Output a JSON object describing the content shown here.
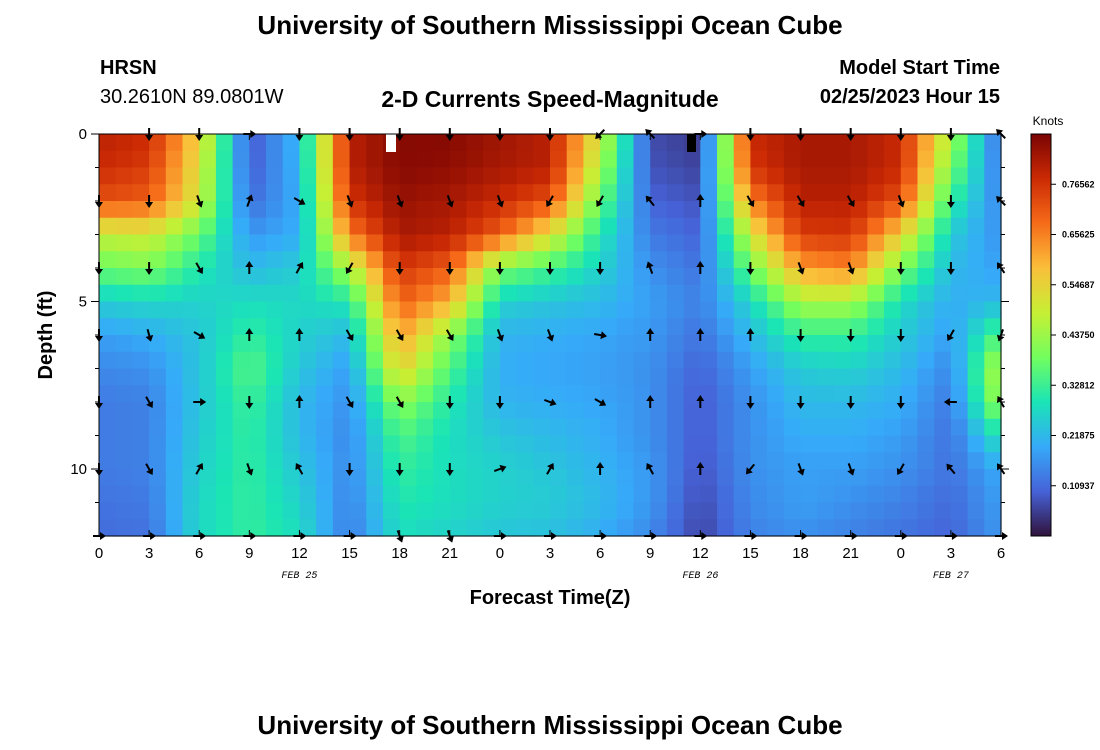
{
  "header": {
    "title": "University of Southern Mississippi Ocean Cube",
    "station": "HRSN",
    "coords": "30.2610N  89.0801W",
    "subtitle": "2-D Currents Speed-Magnitude",
    "model_label": "Model Start Time",
    "model_time": "02/25/2023 Hour 15"
  },
  "footer": {
    "title": "University of Southern Mississippi Ocean Cube"
  },
  "colors": {
    "colormap": [
      "#30123b",
      "#4662d7",
      "#36aaf9",
      "#1ae4b6",
      "#72fe5e",
      "#c7ef34",
      "#fabf3a",
      "#f66b19",
      "#cb2a04",
      "#7a0403"
    ]
  },
  "chart_data": {
    "type": "heatmap",
    "title": "2-D Currents Speed-Magnitude",
    "xlabel": "Forecast Time(Z)",
    "ylabel": "Depth (ft)",
    "xlim": [
      0,
      54
    ],
    "ylim": [
      0,
      12
    ],
    "x_tick_values": [
      0,
      3,
      6,
      9,
      12,
      15,
      18,
      21,
      24,
      27,
      30,
      33,
      36,
      39,
      42,
      45,
      48,
      51,
      54
    ],
    "x_tick_labels": [
      "0",
      "3",
      "6",
      "9",
      "12",
      "15",
      "18",
      "21",
      "0",
      "3",
      "6",
      "9",
      "12",
      "15",
      "18",
      "21",
      "0",
      "3",
      "6"
    ],
    "y_tick_values": [
      0,
      5,
      10
    ],
    "y_tick_labels": [
      "0",
      "5",
      "10"
    ],
    "date_labels": [
      {
        "text": "FEB 25",
        "x": 12
      },
      {
        "text": "FEB 26",
        "x": 36
      },
      {
        "text": "FEB 27",
        "x": 51
      }
    ],
    "colorbar": {
      "label": "Knots",
      "min": 0,
      "max": 0.875,
      "tick_values": [
        0.10937,
        0.21875,
        0.32812,
        0.4375,
        0.54687,
        0.65625,
        0.76562
      ],
      "tick_labels": [
        "0.10937",
        "0.21875",
        "0.32812",
        "0.43750",
        "0.54687",
        "0.65625",
        "0.76562"
      ]
    },
    "time_hours": [
      0,
      3,
      6,
      9,
      12,
      15,
      18,
      21,
      24,
      27,
      30,
      33,
      36,
      39,
      42,
      45,
      48,
      51,
      54
    ],
    "depth_rows_ft": [
      0,
      1,
      2,
      3,
      4,
      5,
      6,
      7,
      8,
      9,
      10,
      11,
      12
    ],
    "speed_knots": [
      [
        0.8,
        0.78,
        0.55,
        0.08,
        0.22,
        0.8,
        0.86,
        0.86,
        0.83,
        0.8,
        0.5,
        0.07,
        0.05,
        0.78,
        0.82,
        0.82,
        0.78,
        0.45,
        0.1
      ],
      [
        0.78,
        0.75,
        0.52,
        0.09,
        0.21,
        0.8,
        0.86,
        0.85,
        0.82,
        0.8,
        0.45,
        0.08,
        0.06,
        0.76,
        0.82,
        0.82,
        0.78,
        0.4,
        0.12
      ],
      [
        0.72,
        0.7,
        0.5,
        0.11,
        0.2,
        0.76,
        0.84,
        0.82,
        0.78,
        0.72,
        0.38,
        0.1,
        0.08,
        0.65,
        0.8,
        0.8,
        0.72,
        0.32,
        0.14
      ],
      [
        0.48,
        0.5,
        0.38,
        0.17,
        0.2,
        0.66,
        0.82,
        0.8,
        0.7,
        0.52,
        0.3,
        0.13,
        0.1,
        0.5,
        0.75,
        0.76,
        0.55,
        0.25,
        0.16
      ],
      [
        0.38,
        0.4,
        0.3,
        0.22,
        0.25,
        0.45,
        0.76,
        0.7,
        0.4,
        0.34,
        0.26,
        0.16,
        0.12,
        0.38,
        0.62,
        0.65,
        0.4,
        0.22,
        0.18
      ],
      [
        0.25,
        0.27,
        0.26,
        0.28,
        0.27,
        0.3,
        0.7,
        0.6,
        0.26,
        0.24,
        0.22,
        0.18,
        0.14,
        0.27,
        0.45,
        0.45,
        0.28,
        0.2,
        0.22
      ],
      [
        0.18,
        0.2,
        0.24,
        0.32,
        0.26,
        0.22,
        0.62,
        0.42,
        0.21,
        0.2,
        0.19,
        0.17,
        0.12,
        0.22,
        0.32,
        0.32,
        0.25,
        0.18,
        0.36
      ],
      [
        0.15,
        0.16,
        0.24,
        0.36,
        0.24,
        0.18,
        0.55,
        0.35,
        0.2,
        0.19,
        0.18,
        0.16,
        0.1,
        0.18,
        0.25,
        0.26,
        0.22,
        0.15,
        0.48
      ],
      [
        0.13,
        0.14,
        0.24,
        0.33,
        0.22,
        0.16,
        0.42,
        0.3,
        0.21,
        0.2,
        0.19,
        0.16,
        0.09,
        0.16,
        0.22,
        0.22,
        0.2,
        0.13,
        0.45
      ],
      [
        0.13,
        0.14,
        0.25,
        0.32,
        0.22,
        0.15,
        0.35,
        0.28,
        0.24,
        0.22,
        0.2,
        0.16,
        0.09,
        0.16,
        0.2,
        0.2,
        0.18,
        0.12,
        0.3
      ],
      [
        0.13,
        0.14,
        0.26,
        0.32,
        0.24,
        0.15,
        0.32,
        0.28,
        0.26,
        0.24,
        0.21,
        0.17,
        0.08,
        0.16,
        0.18,
        0.18,
        0.16,
        0.12,
        0.2
      ],
      [
        0.12,
        0.13,
        0.27,
        0.32,
        0.26,
        0.14,
        0.3,
        0.28,
        0.26,
        0.25,
        0.22,
        0.17,
        0.07,
        0.15,
        0.18,
        0.16,
        0.14,
        0.11,
        0.18
      ],
      [
        0.11,
        0.12,
        0.27,
        0.32,
        0.28,
        0.13,
        0.28,
        0.26,
        0.24,
        0.23,
        0.2,
        0.15,
        0.06,
        0.14,
        0.16,
        0.14,
        0.12,
        0.1,
        0.17
      ]
    ],
    "vectors": {
      "depths_ft": [
        0,
        2,
        4,
        6,
        8,
        10,
        12
      ],
      "direction_deg": [
        [
          0,
          90,
          90,
          0,
          90,
          90,
          90,
          90,
          90,
          90,
          135,
          225,
          0,
          90,
          90,
          90,
          90,
          90,
          225
        ],
        [
          90,
          90,
          70,
          290,
          30,
          70,
          70,
          70,
          70,
          120,
          120,
          230,
          270,
          60,
          60,
          60,
          70,
          90,
          225
        ],
        [
          90,
          90,
          60,
          270,
          300,
          120,
          90,
          90,
          90,
          90,
          90,
          250,
          270,
          90,
          70,
          70,
          90,
          90,
          235
        ],
        [
          90,
          75,
          30,
          270,
          270,
          60,
          60,
          60,
          70,
          70,
          10,
          270,
          270,
          270,
          90,
          90,
          90,
          120,
          110
        ],
        [
          90,
          60,
          0,
          90,
          270,
          60,
          60,
          90,
          90,
          20,
          30,
          270,
          270,
          90,
          90,
          90,
          90,
          180,
          240
        ],
        [
          90,
          60,
          300,
          70,
          240,
          90,
          90,
          90,
          340,
          300,
          270,
          240,
          270,
          130,
          70,
          70,
          120,
          230,
          235
        ],
        [
          0,
          0,
          0,
          0,
          0,
          0,
          70,
          70,
          0,
          0,
          0,
          0,
          0,
          0,
          0,
          0,
          0,
          0,
          0
        ]
      ]
    }
  }
}
